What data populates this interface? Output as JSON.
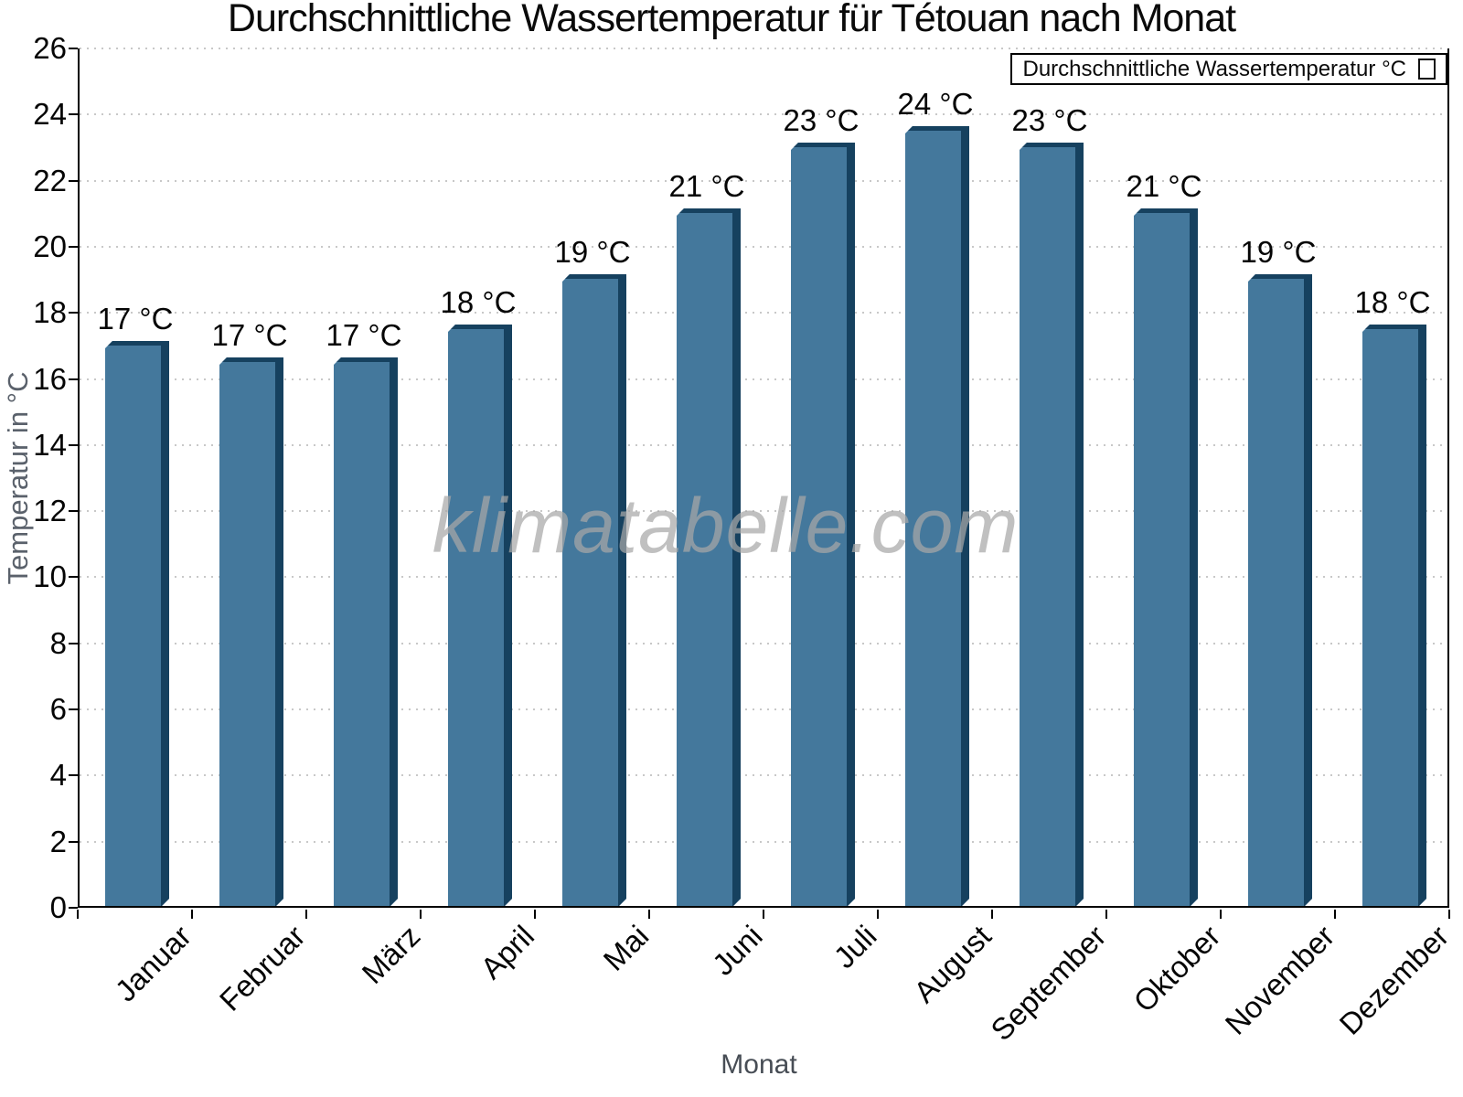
{
  "title": "Durchschnittliche Wassertemperatur für Tétouan nach Monat",
  "xlabel": "Monat",
  "ylabel": "Temperatur in °C",
  "legend_label": "Durchschnittliche Wassertemperatur °C",
  "watermark": "klimatabelle.com",
  "colors": {
    "bar_face": "#44789c",
    "bar_edge": "#16415f",
    "grid": "#c8c8c8",
    "axis": "#000000",
    "axis_title": "#5a616b",
    "watermark": "#bebebe"
  },
  "chart_data": {
    "type": "bar",
    "title": "Durchschnittliche Wassertemperatur für Tétouan nach Monat",
    "xlabel": "Monat",
    "ylabel": "Temperatur in °C",
    "categories": [
      "Januar",
      "Februar",
      "März",
      "April",
      "Mai",
      "Juni",
      "Juli",
      "August",
      "September",
      "Oktober",
      "November",
      "Dezember"
    ],
    "values": [
      17.1,
      16.6,
      16.6,
      17.6,
      19.1,
      21.1,
      23.1,
      23.6,
      23.1,
      21.1,
      19.1,
      17.6
    ],
    "bar_labels": [
      "17 °C",
      "17 °C",
      "17 °C",
      "18 °C",
      "19 °C",
      "21 °C",
      "23 °C",
      "24 °C",
      "23 °C",
      "21 °C",
      "19 °C",
      "18 °C"
    ],
    "ylim": [
      0,
      26
    ],
    "ytick_step": 2,
    "grid": "horizontal-dotted",
    "legend_position": "top-right",
    "legend_entries": [
      "Durchschnittliche Wassertemperatur °C"
    ]
  }
}
